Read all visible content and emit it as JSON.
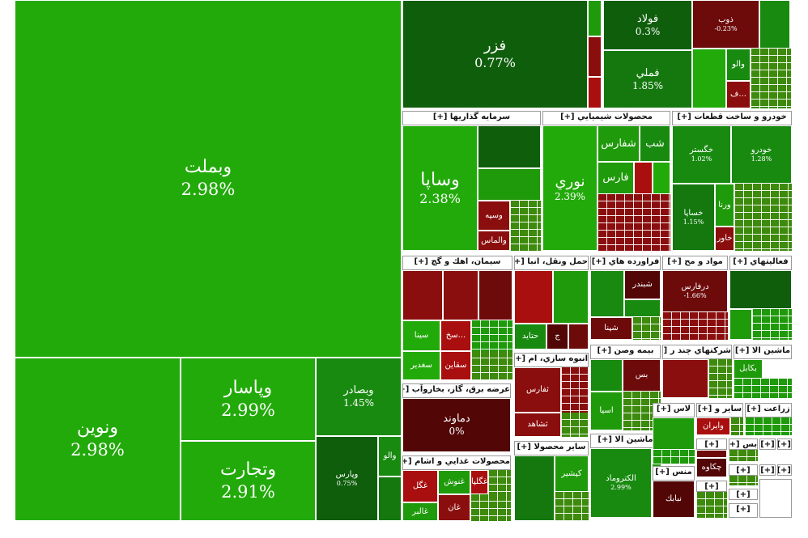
{
  "tiles": {
    "vabemelat": {
      "symbol": "وبملت",
      "pct": "2.98%"
    },
    "vanovin": {
      "symbol": "ونوين",
      "pct": "2.98%"
    },
    "vapasar": {
      "symbol": "وپاسار",
      "pct": "2.99%"
    },
    "vatejarat": {
      "symbol": "وتجارت",
      "pct": "2.91%"
    },
    "vabsader": {
      "symbol": "وبصادر",
      "pct": "1.45%"
    },
    "vapars": {
      "symbol": "وپارس",
      "pct": "0.75%"
    },
    "fezar": {
      "symbol": "فزر",
      "pct": "0.77%"
    },
    "fulad": {
      "symbol": "فولاد",
      "pct": "0.3%"
    },
    "zob": {
      "symbol": "ذوب",
      "pct": "-0.23%"
    },
    "fameli": {
      "symbol": "فملي",
      "pct": "1.85%"
    },
    "vasapa": {
      "symbol": "وساپا",
      "pct": "2.38%"
    },
    "nori": {
      "symbol": "نوري",
      "pct": "2.39%"
    },
    "shefars": {
      "symbol": "شفارس",
      "pct": ""
    },
    "shab": {
      "symbol": "شب",
      "pct": ""
    },
    "fars": {
      "symbol": "فارس",
      "pct": ""
    },
    "khegostar": {
      "symbol": "خگستر",
      "pct": "1.02%"
    },
    "khodro": {
      "symbol": "خودرو",
      "pct": "1.28%"
    },
    "khesapa": {
      "symbol": "خساپا",
      "pct": "1.15%"
    },
    "varna": {
      "symbol": "ورنا",
      "pct": ""
    },
    "khavar": {
      "symbol": "خاور",
      "pct": ""
    },
    "vasepah": {
      "symbol": "وسپه",
      "pct": ""
    },
    "valmas": {
      "symbol": "والماس",
      "pct": ""
    },
    "sina": {
      "symbol": "سينا",
      "pct": ""
    },
    "sakh": {
      "symbol": "سخ...",
      "pct": ""
    },
    "saqain": {
      "symbol": "سقاين",
      "pct": ""
    },
    "sakhdir": {
      "symbol": "سغدير",
      "pct": ""
    },
    "hatayd": {
      "symbol": "حتايد",
      "pct": ""
    },
    "shebandar": {
      "symbol": "شبندر",
      "pct": ""
    },
    "shepna": {
      "symbol": "شپنا",
      "pct": ""
    },
    "daroqas": {
      "symbol": "درفارس",
      "pct": "-1.66%"
    },
    "damavand": {
      "symbol": "دماوند",
      "pct": "0%"
    },
    "tefars": {
      "symbol": "ثفارس",
      "pct": ""
    },
    "shahed": {
      "symbol": "ثشاهد",
      "pct": ""
    },
    "asia": {
      "symbol": "اسيا",
      "pct": ""
    },
    "bes": {
      "symbol": "بس",
      "pct": ""
    },
    "bekabel": {
      "symbol": "بكابل",
      "pct": ""
    },
    "vairan": {
      "symbol": "وايران",
      "pct": ""
    },
    "chekaveh": {
      "symbol": "چكاوه",
      "pct": ""
    },
    "nabik": {
      "symbol": "نبابك",
      "pct": ""
    },
    "keshir": {
      "symbol": "كپشير",
      "pct": ""
    },
    "alktroumad": {
      "symbol": "الكتروماد",
      "pct": "2.99%"
    },
    "ghegol": {
      "symbol": "غگلپا",
      "pct": ""
    },
    "ghanosh": {
      "symbol": "غنوش",
      "pct": ""
    },
    "ghegol2": {
      "symbol": "غگل",
      "pct": ""
    },
    "ghan": {
      "symbol": "غان",
      "pct": ""
    },
    "ghalbar": {
      "symbol": "غالبر",
      "pct": ""
    },
    "vaboalli": {
      "symbol": "والو",
      "pct": ""
    },
    "f": {
      "symbol": "ف...",
      "pct": ""
    },
    "jav": {
      "symbol": "ج",
      "pct": ""
    },
    "sheb2": {
      "symbol": "شپ",
      "pct": ""
    }
  },
  "sectors": {
    "sarmaye": "سرمايه گذاريها [+]",
    "shimiai": "محصولات شيميايي [+]",
    "khodroSakht": "خودرو و ساخت قطعات [+]",
    "siman": "سيمان، اهك و گچ [+]",
    "haml": "حمل ونقل، انبا [+]",
    "faravarde": "فراورده هاي [+]",
    "mavad": "مواد و مح [+]",
    "faaliat": "فعاليتهاي [+]",
    "anbooh": "انبوه سازي، ام [+]",
    "bimeh": "بيمه وصن [+]",
    "sherkat": "شركتهاي چند ر [+]",
    "mashinAla": "ماشين الا [+]",
    "arzeh": "عرضه برق، گاز، بخاروآب [+]",
    "ghazaei": "محصولات غذايي و اشام [+]",
    "sayerMahsool": "ساير محصولا [+]",
    "mashinAla2": "ماشين الا [+]",
    "las": "لاس [+]",
    "sayer": "ساير و [+]",
    "zeraat": "زراعت [+]",
    "mens": "منس [+]",
    "plus1": "[+]",
    "plus2": "[+]",
    "plus3": "[+]",
    "plus4": "[+]",
    "plus5": "[+]",
    "plus6": "[+]",
    "plus7": "[+]",
    "plus8": "[+]",
    "plus9": "[+]",
    "bis": "بس [+]"
  },
  "colors": {
    "strong_green": "#22aa0a",
    "dark_green": "#0f5e0c",
    "red": "#a90f0f",
    "dark_red": "#520606"
  }
}
